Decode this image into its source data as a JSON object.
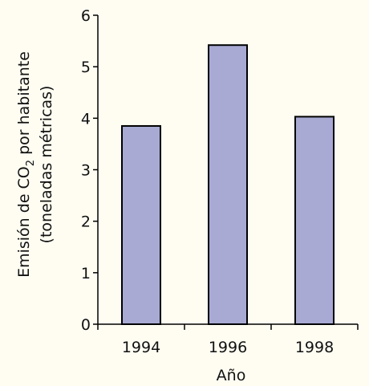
{
  "colors": {
    "background": "#fffdf2",
    "bar_fill": "#a8aad4",
    "bar_stroke": "#000000",
    "axis": "#000000"
  },
  "chart_data": {
    "type": "bar",
    "categories": [
      "1994",
      "1996",
      "1998"
    ],
    "values": [
      3.85,
      5.42,
      4.03
    ],
    "xlabel": "Año",
    "ylabel_line1": {
      "pre": "Emisión de CO",
      "sub": "2",
      "post": " por habitante"
    },
    "ylabel_line2": "(toneladas métricas)",
    "ylim": [
      0,
      6
    ],
    "yticks": [
      0,
      1,
      2,
      3,
      4,
      5,
      6
    ],
    "ytick_labels": [
      "0",
      "1",
      "2",
      "3",
      "4",
      "5",
      "6"
    ],
    "grid": false,
    "legend": "none"
  }
}
